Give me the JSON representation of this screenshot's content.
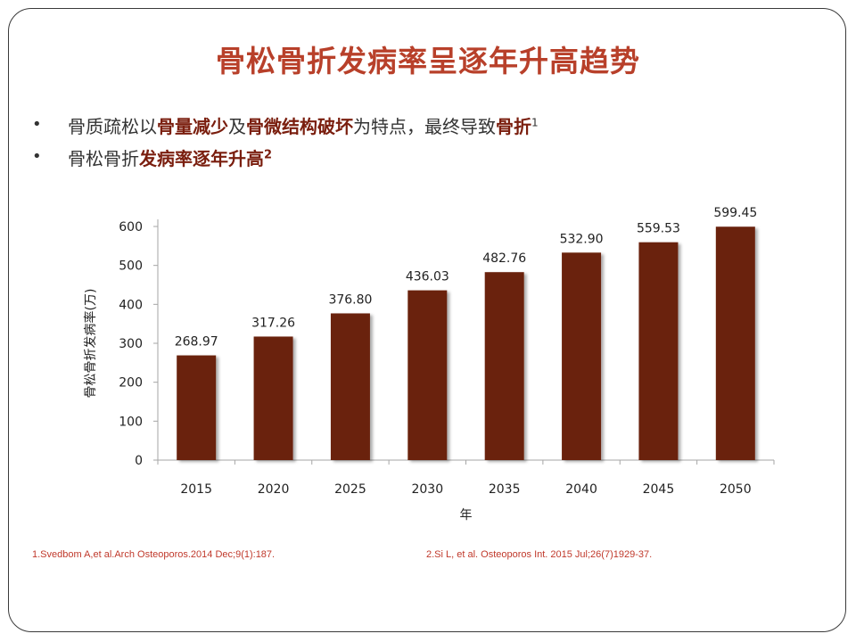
{
  "slide": {
    "title": "骨松骨折发病率呈逐年升高趋势",
    "bullets": [
      {
        "marker": "•",
        "segments": [
          {
            "text": "骨质疏松以",
            "bold": false
          },
          {
            "text": "骨量减少",
            "bold": true
          },
          {
            "text": "及",
            "bold": false
          },
          {
            "text": "骨微结构破坏",
            "bold": true
          },
          {
            "text": "为特点，最终导致",
            "bold": false
          },
          {
            "text": "骨折",
            "bold": true
          }
        ],
        "sup": "1"
      },
      {
        "marker": "•",
        "segments": [
          {
            "text": "骨松骨折",
            "bold": false
          },
          {
            "text": "发病率逐年升高",
            "bold": true
          }
        ],
        "sup": "2"
      }
    ],
    "references": [
      "1.Svedbom A,et al.Arch Osteoporos.2014 Dec;9(1):187.",
      "2.Si L, et al. Osteoporos Int. 2015 Jul;26(7)1929-37."
    ]
  },
  "chart_data": {
    "type": "bar",
    "categories": [
      "2015",
      "2020",
      "2025",
      "2030",
      "2035",
      "2040",
      "2045",
      "2050"
    ],
    "values": [
      268.97,
      317.26,
      376.8,
      436.03,
      482.76,
      532.9,
      559.53,
      599.45
    ],
    "data_labels": [
      "268.97",
      "317.26",
      "376.80",
      "436.03",
      "482.76",
      "532.90",
      "559.53",
      "599.45"
    ],
    "xlabel": "年",
    "ylabel": "骨松骨折发病率(万)",
    "ylim": [
      0,
      600
    ],
    "yticks": [
      0,
      100,
      200,
      300,
      400,
      500,
      600
    ],
    "grid": false,
    "legend": "none",
    "bar_color": "#6b2410"
  }
}
